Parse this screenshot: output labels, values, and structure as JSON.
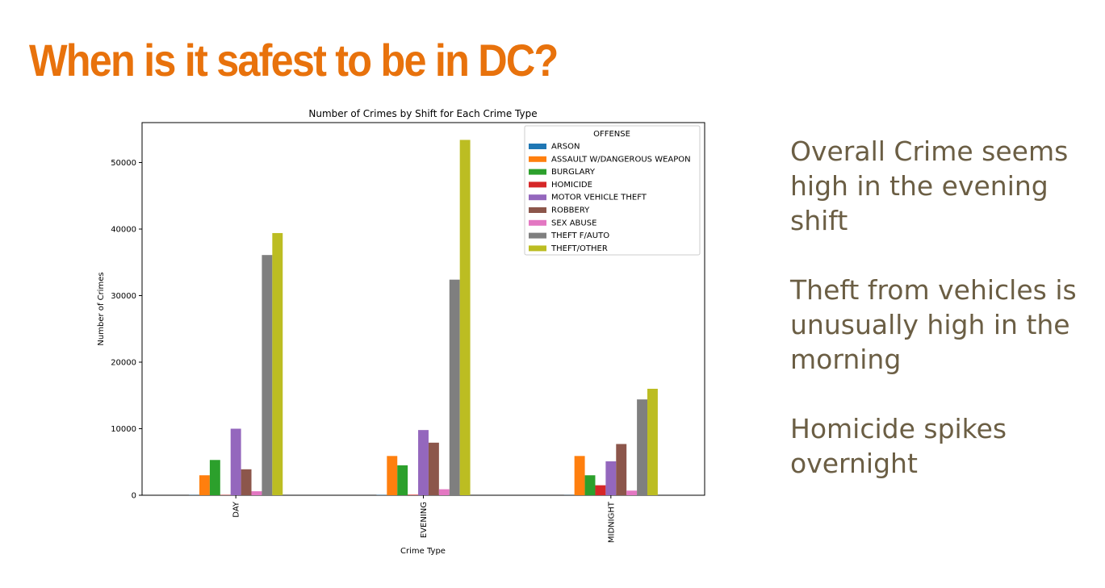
{
  "slide": {
    "title": "When is it safest to be in DC?",
    "notes": [
      "Overall Crime seems high in the evening shift",
      "Theft from vehicles is unusually high in the morning",
      "Homicide spikes overnight"
    ]
  },
  "chart_data": {
    "type": "bar",
    "title": "Number of Crimes by Shift for Each Crime Type",
    "xlabel": "Crime Type",
    "ylabel": "Number of Crimes",
    "categories": [
      "DAY",
      "EVENING",
      "MIDNIGHT"
    ],
    "ylim": [
      0,
      56000
    ],
    "yticks": [
      0,
      10000,
      20000,
      30000,
      40000,
      50000
    ],
    "legend_title": "OFFENSE",
    "legend_position": "top-right",
    "grid": false,
    "series": [
      {
        "name": "ARSON",
        "color": "#1f77b4",
        "values": [
          30,
          40,
          20
        ]
      },
      {
        "name": "ASSAULT W/DANGEROUS WEAPON",
        "color": "#ff7f0e",
        "values": [
          3000,
          5900,
          5900
        ]
      },
      {
        "name": "BURGLARY",
        "color": "#2ca02c",
        "values": [
          5300,
          4500,
          3000
        ]
      },
      {
        "name": "HOMICIDE",
        "color": "#d62728",
        "values": [
          50,
          80,
          1500
        ]
      },
      {
        "name": "MOTOR VEHICLE THEFT",
        "color": "#9467bd",
        "values": [
          10000,
          9800,
          5100
        ]
      },
      {
        "name": "ROBBERY",
        "color": "#8c564b",
        "values": [
          3900,
          7900,
          7700
        ]
      },
      {
        "name": "SEX ABUSE",
        "color": "#e377c2",
        "values": [
          600,
          900,
          700
        ]
      },
      {
        "name": "THEFT F/AUTO",
        "color": "#7f7f7f",
        "values": [
          36100,
          32400,
          14400
        ]
      },
      {
        "name": "THEFT/OTHER",
        "color": "#bcbd22",
        "values": [
          39400,
          53400,
          16000
        ]
      }
    ]
  }
}
